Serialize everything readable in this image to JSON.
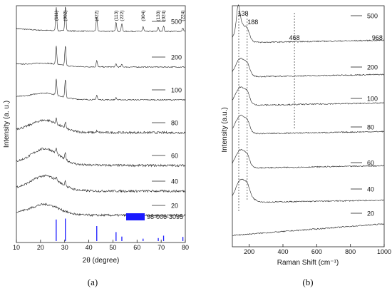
{
  "chart_data": [
    {
      "panel": "(a)",
      "type": "line",
      "xlabel": "2θ (degree)",
      "ylabel": "Intensity (a. u.)",
      "xlim": [
        10,
        80
      ],
      "xticks": [
        "10",
        "20",
        "30",
        "40",
        "50",
        "60",
        "70",
        "80"
      ],
      "peak_labels": [
        {
          "label": "(111)",
          "x": 26.5
        },
        {
          "label": "(002)",
          "x": 30.3
        },
        {
          "label": "(022)",
          "x": 43.3
        },
        {
          "label": "(113)",
          "x": 51.3
        },
        {
          "label": "(222)",
          "x": 53.7
        },
        {
          "label": "(004)",
          "x": 62.5
        },
        {
          "label": "(133)",
          "x": 68.8
        },
        {
          "label": "(024)",
          "x": 71.0
        },
        {
          "label": "(224)",
          "x": 79.0
        }
      ],
      "series": [
        {
          "name": "500",
          "peaks": [
            {
              "x": 26.5,
              "h": 0.92
            },
            {
              "x": 30.3,
              "h": 1.0
            },
            {
              "x": 43.3,
              "h": 0.55
            },
            {
              "x": 51.3,
              "h": 0.38
            },
            {
              "x": 53.7,
              "h": 0.3
            },
            {
              "x": 62.5,
              "h": 0.18
            },
            {
              "x": 68.8,
              "h": 0.16
            },
            {
              "x": 71.0,
              "h": 0.22
            },
            {
              "x": 79.0,
              "h": 0.14
            }
          ]
        },
        {
          "name": "200",
          "peaks": [
            {
              "x": 26.5,
              "h": 0.85
            },
            {
              "x": 30.3,
              "h": 0.95
            },
            {
              "x": 43.3,
              "h": 0.3
            },
            {
              "x": 51.3,
              "h": 0.15
            },
            {
              "x": 53.7,
              "h": 0.12
            }
          ]
        },
        {
          "name": "100",
          "peaks": [
            {
              "x": 26.5,
              "h": 0.75
            },
            {
              "x": 30.3,
              "h": 0.85
            },
            {
              "x": 43.3,
              "h": 0.22
            },
            {
              "x": 51.3,
              "h": 0.1
            }
          ]
        },
        {
          "name": "80",
          "peaks": [
            {
              "x": 26.5,
              "h": 0.35
            },
            {
              "x": 30.3,
              "h": 0.45
            },
            {
              "x": 43.3,
              "h": 0.1
            }
          ]
        },
        {
          "name": "60",
          "peaks": [
            {
              "x": 26.5,
              "h": 0.35
            },
            {
              "x": 30.3,
              "h": 0.45
            },
            {
              "x": 43.3,
              "h": 0.1
            }
          ]
        },
        {
          "name": "40",
          "peaks": [
            {
              "x": 26.5,
              "h": 0.3
            },
            {
              "x": 30.3,
              "h": 0.45
            }
          ]
        },
        {
          "name": "20",
          "peaks": [
            {
              "x": 26.5,
              "h": 0.15
            },
            {
              "x": 30.3,
              "h": 0.15
            }
          ]
        }
      ],
      "reference": {
        "name": "98-006-3095",
        "color": "#1a1aff",
        "bars": [
          {
            "x": 26.5,
            "h": 0.72
          },
          {
            "x": 30.3,
            "h": 0.75
          },
          {
            "x": 43.3,
            "h": 0.5
          },
          {
            "x": 51.3,
            "h": 0.3
          },
          {
            "x": 53.7,
            "h": 0.15
          },
          {
            "x": 62.5,
            "h": 0.08
          },
          {
            "x": 68.8,
            "h": 0.1
          },
          {
            "x": 71.0,
            "h": 0.18
          },
          {
            "x": 79.0,
            "h": 0.14
          }
        ]
      }
    },
    {
      "panel": "(b)",
      "type": "line",
      "xlabel": "Raman Shift (cm⁻¹)",
      "ylabel": "Intensity (a.u.)",
      "xlim": [
        100,
        1000
      ],
      "xticks": [
        "200",
        "400",
        "600",
        "800",
        "1000"
      ],
      "peak_labels": [
        {
          "label": "138",
          "x": 138
        },
        {
          "label": "188",
          "x": 188
        },
        {
          "label": "468",
          "x": 468
        },
        {
          "label": "968",
          "x": 968
        }
      ],
      "reference_lines": [
        138,
        188,
        468
      ],
      "series": [
        {
          "name": "500"
        },
        {
          "name": "200"
        },
        {
          "name": "100"
        },
        {
          "name": "80"
        },
        {
          "name": "60"
        },
        {
          "name": "40"
        },
        {
          "name": "20"
        }
      ]
    }
  ]
}
